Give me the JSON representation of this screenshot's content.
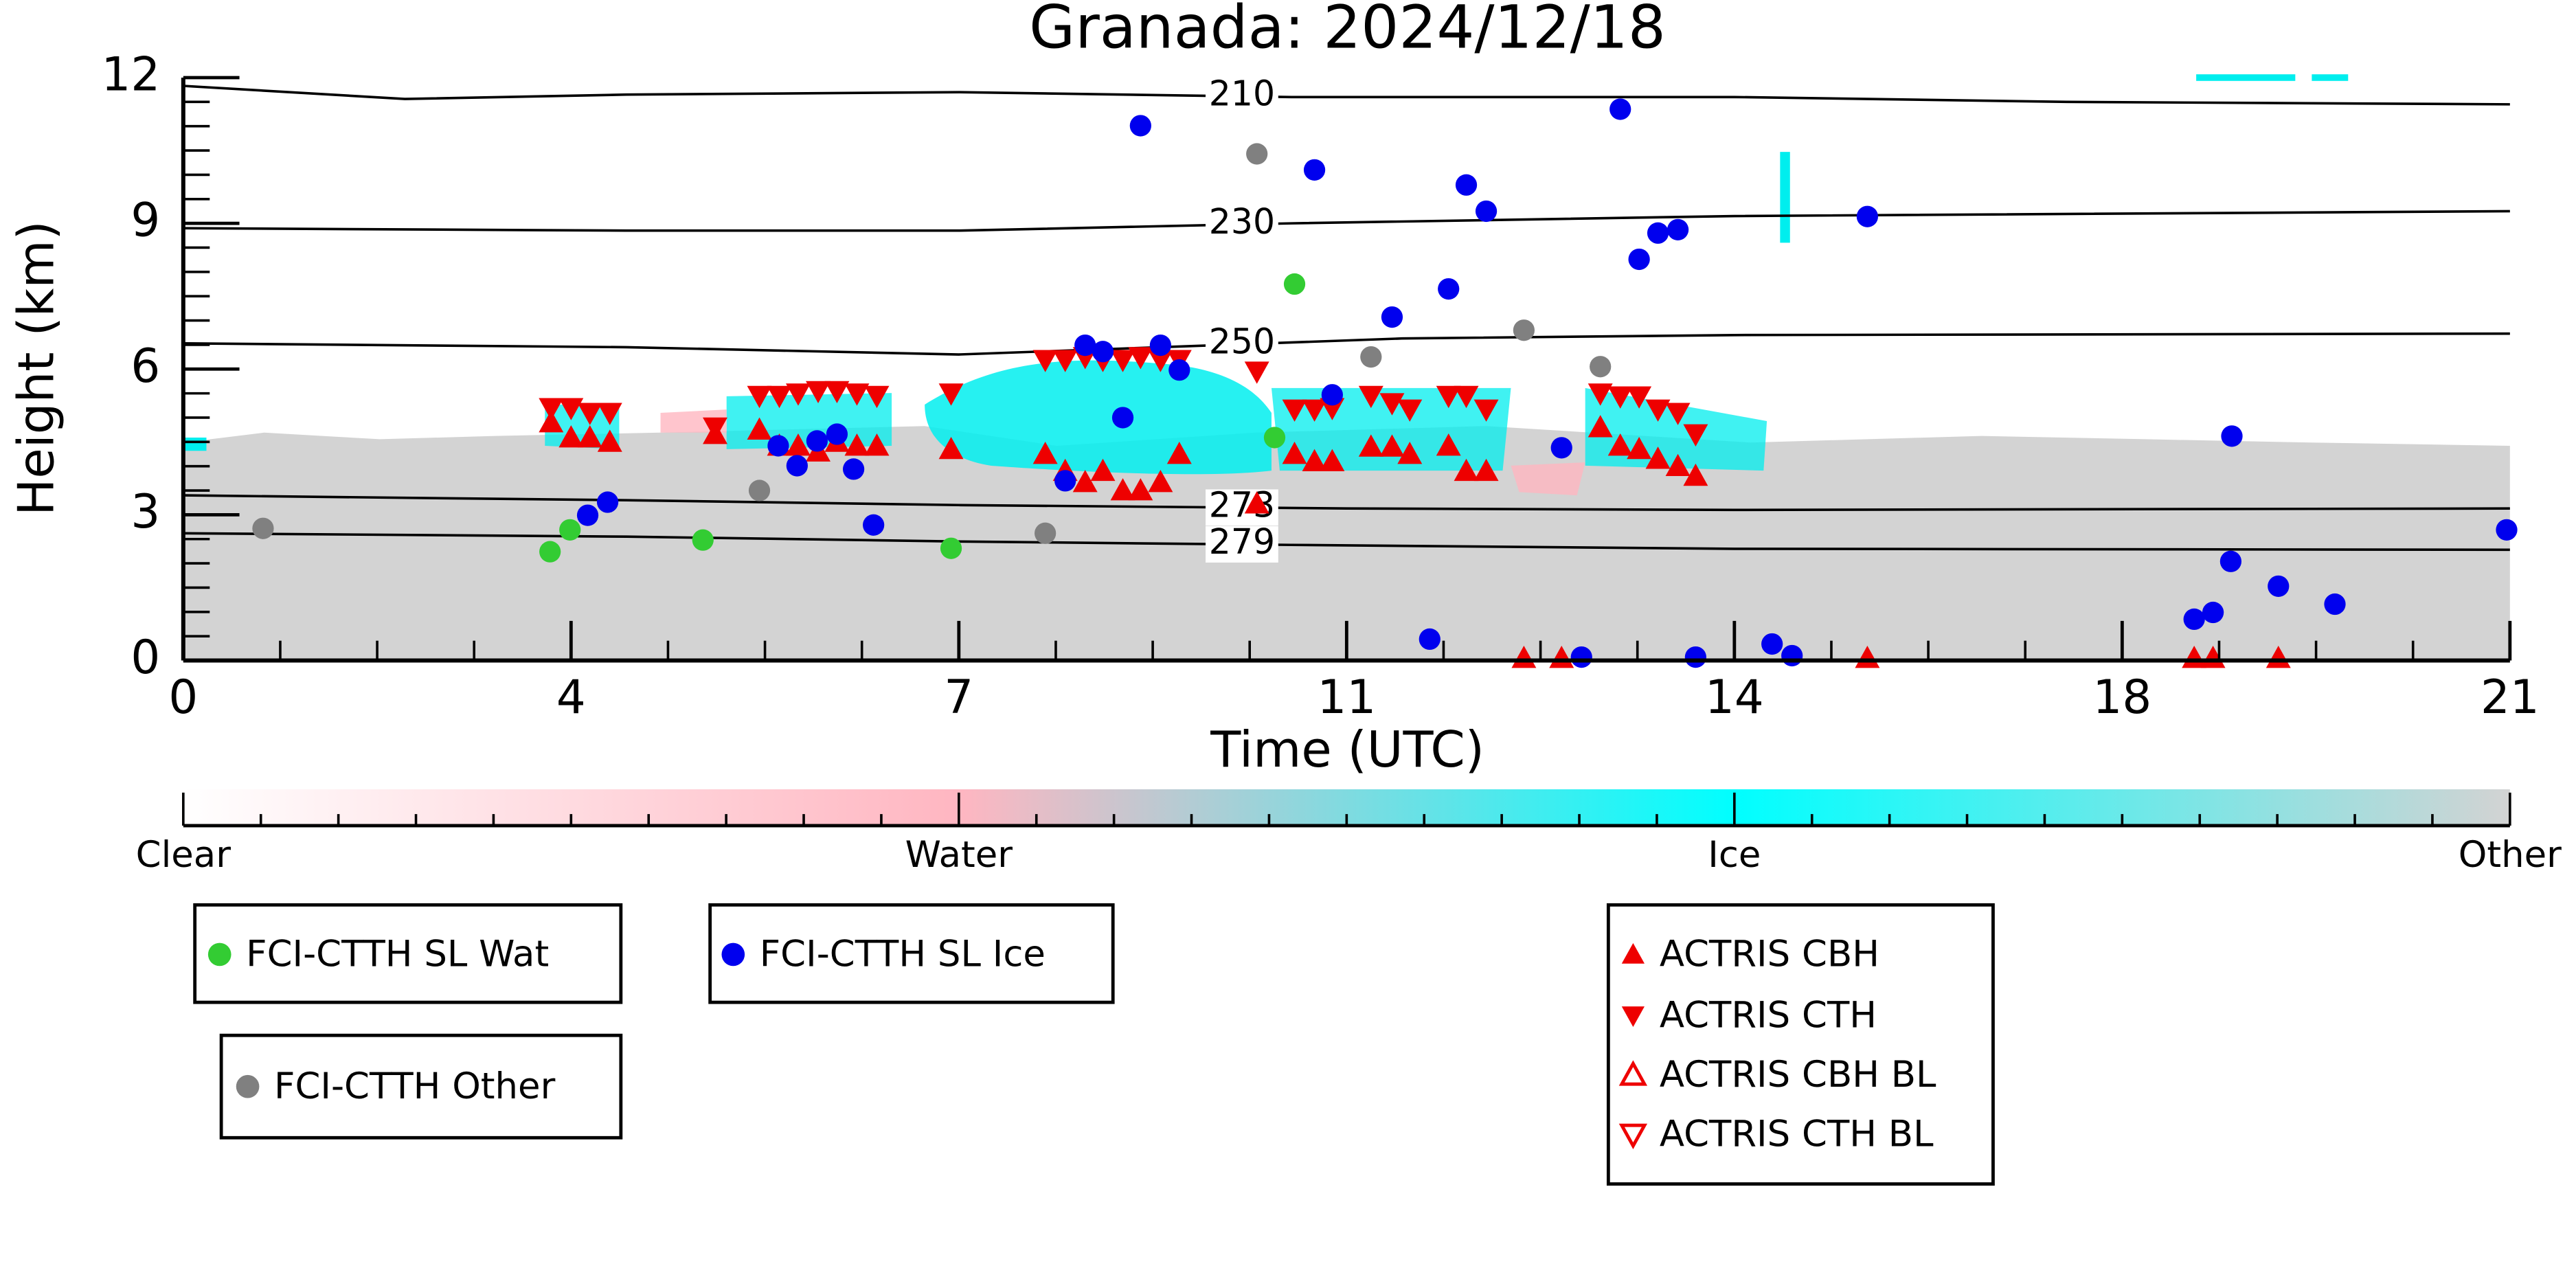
{
  "chart_data": {
    "type": "scatter",
    "title": "Granada: 2024/12/18",
    "xlabel": "Time (UTC)",
    "ylabel": "Height (km)",
    "xlim": [
      0,
      21
    ],
    "ylim": [
      0,
      12
    ],
    "xticks": [
      0,
      {
        "value": 3.5,
        "label": "4"
      },
      7,
      {
        "value": 10.5,
        "label": "11"
      },
      14,
      {
        "value": 17.5,
        "label": "18"
      },
      21
    ],
    "yticks": [
      0,
      3,
      6,
      9,
      12
    ],
    "series": [
      {
        "name": "FCI-CTTH SL Wat",
        "color": "#33cc33",
        "marker": "circle",
        "filled": true,
        "x": [
          3.31,
          3.49,
          4.69,
          6.93,
          10.03,
          9.85
        ],
        "values": [
          2.24,
          2.69,
          2.48,
          2.31,
          7.75,
          4.59
        ]
      },
      {
        "name": "FCI-CTTH SL Ice",
        "color": "#0000ee",
        "marker": "circle",
        "filled": true,
        "x": [
          8.64,
          10.21,
          11.58,
          11.76,
          12.97,
          13.14,
          13.31,
          13.49,
          15.2,
          10.91,
          11.42,
          8.14,
          8.3,
          8.82,
          8.99,
          8.48,
          10.37,
          12.44,
          7.96,
          5.37,
          5.54,
          5.72,
          5.9,
          6.05,
          6.23,
          3.65,
          3.83,
          11.25,
          12.62,
          13.65,
          14.34,
          14.52,
          18.49,
          18.48,
          18.91,
          19.42,
          18.15,
          18.32,
          20.97
        ],
        "values": [
          11.01,
          10.1,
          9.79,
          9.25,
          11.35,
          8.26,
          8.8,
          8.87,
          9.14,
          7.07,
          7.65,
          6.49,
          6.36,
          6.49,
          5.98,
          5.0,
          5.47,
          4.38,
          3.7,
          4.42,
          4.01,
          4.52,
          4.66,
          3.94,
          2.79,
          2.99,
          3.26,
          0.44,
          0.07,
          0.07,
          0.34,
          0.1,
          4.62,
          2.04,
          1.53,
          1.16,
          0.85,
          0.99,
          2.69
        ]
      },
      {
        "name": "FCI-CTTH Other",
        "color": "#808080",
        "marker": "circle",
        "filled": true,
        "x": [
          0.72,
          5.2,
          7.78,
          9.69,
          10.72,
          12.1,
          12.79
        ],
        "values": [
          2.72,
          3.5,
          2.62,
          10.43,
          6.25,
          6.8,
          6.05
        ]
      },
      {
        "name": "ACTRIS CBH",
        "color": "#ee0000",
        "marker": "triangle-up",
        "filled": true,
        "x": [
          3.32,
          3.5,
          3.67,
          3.85,
          4.8,
          5.2,
          5.38,
          5.55,
          5.73,
          5.9,
          6.08,
          6.26,
          6.93,
          7.78,
          7.96,
          8.14,
          8.3,
          8.48,
          8.64,
          8.82,
          8.99,
          9.69,
          10.03,
          10.21,
          10.37,
          10.72,
          10.91,
          11.07,
          11.42,
          11.58,
          11.76,
          12.79,
          12.97,
          13.14,
          13.31,
          13.49,
          13.65,
          12.1,
          12.44,
          15.2,
          18.15,
          18.32,
          18.91
        ],
        "values": [
          4.9,
          4.59,
          4.59,
          4.5,
          4.66,
          4.75,
          4.42,
          4.42,
          4.3,
          4.5,
          4.42,
          4.42,
          4.35,
          4.25,
          3.9,
          3.67,
          3.9,
          3.5,
          3.5,
          3.67,
          4.25,
          3.23,
          4.25,
          4.1,
          4.1,
          4.4,
          4.4,
          4.25,
          4.42,
          3.9,
          3.9,
          4.8,
          4.42,
          4.35,
          4.15,
          4.0,
          3.8,
          0.05,
          0.05,
          0.05,
          0.05,
          0.05,
          0.05
        ]
      },
      {
        "name": "ACTRIS CTH",
        "color": "#ee0000",
        "marker": "triangle-down",
        "filled": true,
        "x": [
          3.32,
          3.5,
          3.67,
          3.85,
          4.8,
          5.2,
          5.38,
          5.55,
          5.73,
          5.9,
          6.08,
          6.26,
          6.93,
          7.78,
          7.96,
          8.14,
          8.3,
          8.48,
          8.64,
          8.82,
          8.99,
          9.69,
          10.03,
          10.21,
          10.37,
          10.72,
          10.91,
          11.07,
          11.42,
          11.58,
          11.76,
          12.79,
          12.97,
          13.14,
          13.31,
          13.49,
          13.65
        ],
        "values": [
          5.2,
          5.2,
          5.1,
          5.1,
          4.8,
          5.45,
          5.45,
          5.5,
          5.55,
          5.55,
          5.5,
          5.45,
          5.5,
          6.19,
          6.19,
          6.25,
          6.19,
          6.19,
          6.25,
          6.19,
          6.19,
          5.95,
          5.17,
          5.17,
          5.2,
          5.45,
          5.3,
          5.17,
          5.45,
          5.45,
          5.17,
          5.5,
          5.44,
          5.44,
          5.17,
          5.1,
          4.66
        ]
      },
      {
        "name": "ACTRIS CBH BL",
        "color": "#ee0000",
        "marker": "triangle-up",
        "filled": false,
        "x": [],
        "values": []
      },
      {
        "name": "ACTRIS CTH BL",
        "color": "#ee0000",
        "marker": "triangle-down",
        "filled": false,
        "x": [],
        "values": []
      }
    ],
    "contours": [
      {
        "level": 210,
        "x": [
          0,
          2,
          4,
          7,
          10,
          14,
          17,
          21
        ],
        "values": [
          11.83,
          11.56,
          11.65,
          11.7,
          11.6,
          11.6,
          11.5,
          11.45
        ]
      },
      {
        "level": 230,
        "x": [
          0,
          4,
          7,
          10,
          14,
          21
        ],
        "values": [
          8.9,
          8.85,
          8.85,
          9.0,
          9.15,
          9.25
        ]
      },
      {
        "level": 250,
        "x": [
          0,
          4,
          7,
          11,
          14,
          21
        ],
        "values": [
          6.53,
          6.45,
          6.3,
          6.63,
          6.7,
          6.73
        ]
      },
      {
        "level": 273,
        "x": [
          0,
          4,
          7,
          10.5,
          14,
          21
        ],
        "values": [
          3.4,
          3.3,
          3.2,
          3.13,
          3.1,
          3.13
        ]
      },
      {
        "level": 279,
        "x": [
          0,
          4,
          7,
          10,
          14,
          21
        ],
        "values": [
          2.62,
          2.55,
          2.45,
          2.38,
          2.3,
          2.28
        ]
      }
    ],
    "colorbar": {
      "labels": [
        "Clear",
        "Water",
        "Ice",
        "Other"
      ],
      "colors": [
        "#ffffff",
        "#ffb6c1",
        "#00ffff",
        "#d3d3d3"
      ]
    }
  }
}
